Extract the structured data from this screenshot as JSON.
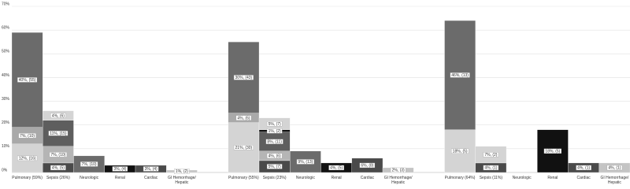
{
  "chart_data": {
    "type": "stacked_bar",
    "categories": [
      "Pulmonary (59%)",
      "Sepsis (26%)",
      "Neurologic",
      "Renal",
      "Cardiac",
      "GI Hemorrhage/ Hepatic",
      "Pulmonary (55%)",
      "Sepsis (23%)",
      "Neurologic",
      "Renal",
      "Cardiac",
      "GI Hemorrhage/ Hepatic",
      "Pulmonary (64%)",
      "Sepsis (11%)",
      "Neurologic",
      "Renal",
      "Cardiac",
      "GI Hemorrhage/ Hepatic"
    ],
    "stacks": [
      [
        {
          "value": 12,
          "value_label": "12%, (16)",
          "color": "#d4d4d4"
        },
        {
          "value": 7,
          "value_label": "7%, (10)",
          "color": "#a9a9a9"
        },
        {
          "value": 40,
          "value_label": "40%, (55)",
          "color": "#6b6b6b"
        }
      ],
      [
        {
          "value": 4,
          "value_label": "4%, (5)",
          "color": "#4a4a4a"
        },
        {
          "value": 7,
          "value_label": "7%, (10)",
          "color": "#b5b5b5"
        },
        {
          "value": 11,
          "value_label": "11%, (15)",
          "color": "#5e5e5e"
        },
        {
          "value": 4,
          "value_label": "4%, (6)",
          "color": "#d4d4d4"
        }
      ],
      [
        {
          "value": 7,
          "value_label": "7%, (10)",
          "color": "#6b6b6b"
        }
      ],
      [
        {
          "value": 3,
          "value_label": "3%, (4)",
          "color": "#111111"
        }
      ],
      [
        {
          "value": 3,
          "value_label": "3%, (4)",
          "color": "#4a4a4a"
        }
      ],
      [
        {
          "value": 1,
          "value_label": "1%, (2)",
          "color": "#c4c4c4"
        }
      ],
      [
        {
          "value": 21,
          "value_label": "21%, (30)",
          "color": "#d4d4d4"
        },
        {
          "value": 4,
          "value_label": "4%, (6)",
          "color": "#a9a9a9"
        },
        {
          "value": 30,
          "value_label": "30%, (43)",
          "color": "#6b6b6b"
        }
      ],
      [
        {
          "value": 5,
          "value_label": "5%, (7)",
          "color": "#4a4a4a"
        },
        {
          "value": 4,
          "value_label": "4%, (6)",
          "color": "#b5b5b5"
        },
        {
          "value": 8,
          "value_label": "8%, (11)",
          "color": "#5e5e5e"
        },
        {
          "value": 1,
          "value_label": "1%, (2)",
          "color": "#111111"
        },
        {
          "value": 5,
          "value_label": "5%, (7)",
          "color": "#d4d4d4"
        }
      ],
      [
        {
          "value": 9,
          "value_label": "9%, (13)",
          "color": "#6b6b6b"
        }
      ],
      [
        {
          "value": 4,
          "value_label": "4%, (5)",
          "color": "#111111"
        }
      ],
      [
        {
          "value": 6,
          "value_label": "6%, (8)",
          "color": "#4a4a4a"
        }
      ],
      [
        {
          "value": 2,
          "value_label": "2%, (3)",
          "color": "#c4c4c4"
        }
      ],
      [
        {
          "value": 18,
          "value_label": "18%, (5)",
          "color": "#d4d4d4"
        },
        {
          "value": 46,
          "value_label": "46%, (13)",
          "color": "#6b6b6b"
        }
      ],
      [
        {
          "value": 4,
          "value_label": "4%, (1)",
          "color": "#4a4a4a"
        },
        {
          "value": 7,
          "value_label": "7%, (2)",
          "color": "#d4d4d4"
        }
      ],
      [],
      [
        {
          "value": 18,
          "value_label": "18%, (5)",
          "color": "#111111"
        }
      ],
      [
        {
          "value": 4,
          "value_label": "4%, (1)",
          "color": "#4a4a4a"
        }
      ],
      [
        {
          "value": 4,
          "value_label": "4%, (1)",
          "color": "#c4c4c4"
        }
      ]
    ],
    "ylim": [
      0,
      70
    ],
    "yticks": [
      {
        "value": 0,
        "label": "0%"
      },
      {
        "value": 10,
        "label": "10%"
      },
      {
        "value": 20,
        "label": "20%"
      },
      {
        "value": 30,
        "label": "30%"
      },
      {
        "value": 40,
        "label": "40%"
      },
      {
        "value": 50,
        "label": "50%"
      },
      {
        "value": 60,
        "label": "60%"
      },
      {
        "value": 70,
        "label": "70%"
      }
    ],
    "grid": true
  }
}
